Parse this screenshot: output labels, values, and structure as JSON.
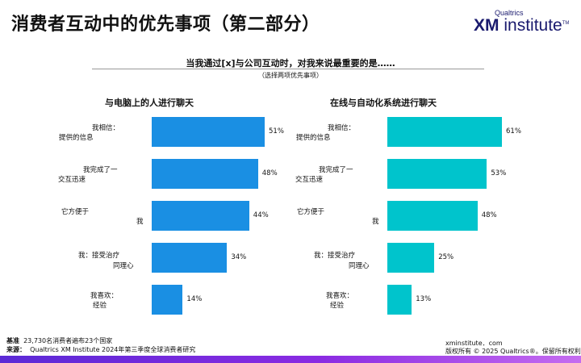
{
  "title": "消费者互动中的优先事项（第二部分）",
  "brand": {
    "top": "Qualtrics",
    "xm": "XM",
    "word": "institute",
    "tm": "TM"
  },
  "question": "当我通过[x]与公司互动时，对我来说最重要的是……",
  "note": "（选择两项优先事项）",
  "chart_data": [
    {
      "type": "bar",
      "title": "与电脑上的人进行聊天",
      "orientation": "horizontal",
      "color": "#1a8fe3",
      "categories": [
        {
          "line1": "我相信：",
          "line2": "提供的信息"
        },
        {
          "line1": "我完成了一",
          "line2": "交互迅速"
        },
        {
          "line1": "它方便于",
          "line2": "我"
        },
        {
          "line1": "我：接受治疗",
          "line2": "同理心"
        },
        {
          "line1": "我喜欢：",
          "line2": "经验"
        }
      ],
      "values": [
        51,
        48,
        44,
        34,
        14
      ],
      "value_labels": [
        "51%",
        "48%",
        "44%",
        "34%",
        "14%"
      ]
    },
    {
      "type": "bar",
      "title": "在线与自动化系统进行聊天",
      "orientation": "horizontal",
      "color": "#00c4cc",
      "categories": [
        {
          "line1": "我相信：",
          "line2": "提供的信息"
        },
        {
          "line1": "我完成了一",
          "line2": "交互迅速"
        },
        {
          "line1": "它方便于",
          "line2": "我"
        },
        {
          "line1": "我：接受治疗",
          "line2": "同理心"
        },
        {
          "line1": "我喜欢：",
          "line2": "经验"
        }
      ],
      "values": [
        61,
        53,
        48,
        25,
        13
      ],
      "value_labels": [
        "61%",
        "53%",
        "48%",
        "25%",
        "13%"
      ]
    }
  ],
  "footer": {
    "base_label": "基准",
    "base_text": "23,730名消费者遍布23个国家",
    "source_label": "来源：",
    "source_text": "Qualtrics XM Institute 2024年第三季度全球消费者研究",
    "site": "xminstitute．com",
    "copyright": "版权所有 © 2025 Qualtrics®。保留所有权利",
    "dot": "。"
  }
}
